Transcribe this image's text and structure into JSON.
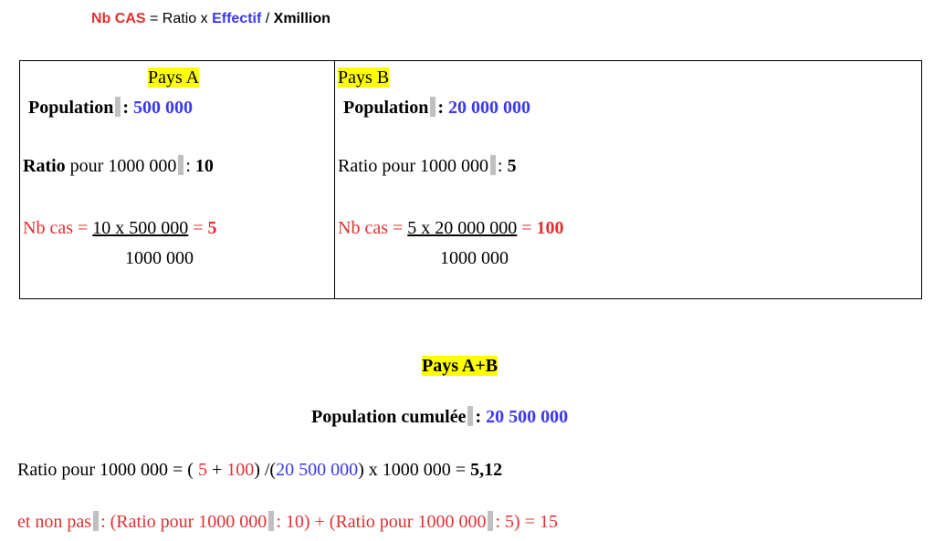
{
  "formula": [
    "Nb CAS",
    "= Ratio x",
    "Effectif",
    "/",
    "Xmillion"
  ],
  "table": {
    "cells": [
      {
        "title": "Pays A",
        "population": [
          "Population",
          ":",
          "500 000"
        ],
        "ratio": [
          "Ratio",
          "pour 1000 000",
          ":",
          "10"
        ],
        "nb_cas": [
          "Nb cas =",
          "10 x 500 000",
          "=",
          "5"
        ],
        "denominator": "1000 000"
      },
      {
        "title": "Pays B",
        "population": [
          "Population",
          ":",
          "20 000 000"
        ],
        "ratio": [
          "Ratio pour 1000 000",
          ":",
          "5"
        ],
        "nb_cas": [
          "Nb cas =",
          "5 x 20 000 000",
          "=",
          "100"
        ],
        "denominator": "1000 000"
      }
    ]
  },
  "summary": {
    "title": "Pays A+B",
    "population": [
      "Population cumulée",
      ":",
      "20 500 000"
    ],
    "ratio_line": [
      "Ratio pour 1000 000 = (",
      "5",
      "+",
      "100",
      ") /(",
      "20 500 000",
      ") x 1000 000 =",
      "5,12"
    ],
    "wrong_line": [
      "et non pas",
      ":  (Ratio pour 1000 000",
      ": 10) + (Ratio pour 1000 000",
      ": 5) = 15"
    ]
  }
}
